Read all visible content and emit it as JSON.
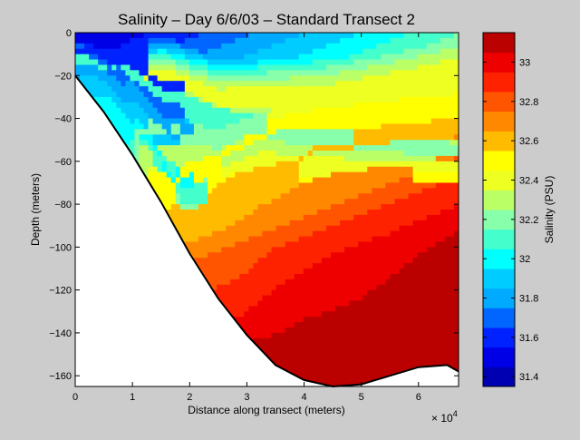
{
  "chart_data": {
    "type": "heatmap",
    "title": "Salinity – Day 6/6/03 – Standard Transect 2",
    "xlabel": "Distance along transect (meters)",
    "ylabel": "Depth (meters)",
    "x_exponent_label": "× 10",
    "x_exponent_power": "4",
    "xlim": [
      0,
      6.7
    ],
    "ylim": [
      -165,
      0
    ],
    "x_ticks": [
      0,
      1,
      2,
      3,
      4,
      5,
      6
    ],
    "x_tick_labels": [
      "0",
      "1",
      "2",
      "3",
      "4",
      "5",
      "6"
    ],
    "y_ticks": [
      0,
      -20,
      -40,
      -60,
      -80,
      -100,
      -120,
      -140,
      -160
    ],
    "y_tick_labels": [
      "0",
      "−20",
      "−40",
      "−60",
      "−80",
      "−100",
      "−120",
      "−140",
      "−160"
    ],
    "colorbar": {
      "label": "Salinity (PSU)",
      "range": [
        31.35,
        33.15
      ],
      "ticks": [
        31.4,
        31.6,
        31.8,
        32.0,
        32.2,
        32.4,
        32.6,
        32.8,
        33.0
      ],
      "tick_labels": [
        "31.4",
        "31.6",
        "31.8",
        "32",
        "32.2",
        "32.4",
        "32.6",
        "32.8",
        "33"
      ],
      "levels": [
        {
          "from": 31.35,
          "to": 31.45,
          "color": "#0000b3"
        },
        {
          "from": 31.45,
          "to": 31.55,
          "color": "#0000e6"
        },
        {
          "from": 31.55,
          "to": 31.65,
          "color": "#0022ff"
        },
        {
          "from": 31.65,
          "to": 31.75,
          "color": "#0066ff"
        },
        {
          "from": 31.75,
          "to": 31.85,
          "color": "#00aaff"
        },
        {
          "from": 31.85,
          "to": 31.95,
          "color": "#00ccff"
        },
        {
          "from": 31.95,
          "to": 32.05,
          "color": "#00ffff"
        },
        {
          "from": 32.05,
          "to": 32.15,
          "color": "#44ffcc"
        },
        {
          "from": 32.15,
          "to": 32.25,
          "color": "#88ffaa"
        },
        {
          "from": 32.25,
          "to": 32.35,
          "color": "#bbff66"
        },
        {
          "from": 32.35,
          "to": 32.45,
          "color": "#eeff22"
        },
        {
          "from": 32.45,
          "to": 32.55,
          "color": "#ffff00"
        },
        {
          "from": 32.55,
          "to": 32.65,
          "color": "#ffbb00"
        },
        {
          "from": 32.65,
          "to": 32.75,
          "color": "#ff8800"
        },
        {
          "from": 32.75,
          "to": 32.85,
          "color": "#ff5500"
        },
        {
          "from": 32.85,
          "to": 32.95,
          "color": "#ff2200"
        },
        {
          "from": 32.95,
          "to": 33.05,
          "color": "#ee0000"
        },
        {
          "from": 33.05,
          "to": 33.15,
          "color": "#bb0000"
        }
      ]
    },
    "salinity_contours": [
      {
        "x": [
          0.55,
          0.55
        ],
        "y": [
          0,
          -10
        ],
        "values_note_salinity": 31.45
      },
      {
        "x": [
          0.0,
          0.55,
          0.9,
          1.5
        ],
        "y": [
          -3,
          -3,
          -12,
          -24
        ],
        "salinity": 31.55
      },
      {
        "x": [
          0.0,
          0.45,
          1.0,
          1.5
        ],
        "y": [
          -8,
          -10,
          -22,
          -35
        ],
        "salinity": 31.65
      },
      {
        "x": [
          0.15,
          0.7,
          1.2,
          1.7
        ],
        "y": [
          -8,
          -18,
          -30,
          -48
        ],
        "salinity": 31.75
      },
      {
        "x": [
          0.35,
          0.9,
          1.4
        ],
        "y": [
          -16,
          -30,
          -50
        ],
        "salinity": 31.85
      },
      {
        "x": [
          0.5,
          1.1,
          1.5,
          1.7
        ],
        "y": [
          -25,
          -42,
          -58,
          -68
        ],
        "salinity": 31.95
      },
      {
        "x": [
          0.65,
          1.3,
          1.7,
          1.9
        ],
        "y": [
          -34,
          -52,
          -65,
          -76
        ],
        "salinity": 32.05
      },
      {
        "x": [
          0.0,
          0.7,
          1.6,
          2.9,
          4.7,
          6.7
        ],
        "y": [
          -12,
          -16,
          -30,
          -45,
          -52,
          -55
        ],
        "salinity": 32.15
      },
      {
        "x": [
          1.4,
          2.2,
          3.5,
          5.0,
          6.7
        ],
        "y": [
          -46,
          -50,
          -54,
          -58,
          -60
        ],
        "salinity": 32.25
      },
      {
        "x": [
          1.5,
          2.5,
          4.5,
          6.7
        ],
        "y": [
          -55,
          -57,
          -60,
          -62
        ],
        "salinity": 32.35
      },
      {
        "x": [
          1.6,
          2.5,
          4.5,
          6.7
        ],
        "y": [
          -20,
          -30,
          -30,
          -22
        ],
        "salinity": 32.45
      },
      {
        "x": [
          1.7,
          2.3,
          3.5,
          5.0,
          6.7
        ],
        "y": [
          -70,
          -60,
          -45,
          -38,
          -35
        ],
        "salinity": 32.55
      },
      {
        "x": [
          2.0,
          2.7,
          4.2,
          5.8,
          6.7
        ],
        "y": [
          -90,
          -75,
          -55,
          -48,
          -45
        ],
        "salinity": 32.65
      },
      {
        "x": [
          2.5,
          3.2,
          4.5,
          5.7,
          6.7
        ],
        "y": [
          -112,
          -95,
          -72,
          -62,
          -58
        ],
        "salinity": 32.75
      },
      {
        "x": [
          2.9,
          3.5,
          4.5,
          5.4,
          6.7
        ],
        "y": [
          -125,
          -110,
          -90,
          -82,
          -78
        ],
        "salinity": 32.85
      },
      {
        "x": [
          3.2,
          4.0,
          5.0,
          6.0,
          6.7
        ],
        "y": [
          -138,
          -125,
          -115,
          -95,
          -82
        ],
        "salinity": 32.95
      },
      {
        "x": [
          3.5,
          4.2,
          5.2,
          6.2,
          6.7
        ],
        "y": [
          -148,
          -142,
          -135,
          -120,
          -105
        ],
        "salinity": 33.05
      },
      {
        "x": [
          4.2,
          5.0,
          6.0,
          6.7
        ],
        "y": [
          -162,
          -155,
          -148,
          -138
        ],
        "salinity": 33.15
      }
    ],
    "seafloor": {
      "x": [
        0,
        0.5,
        1.0,
        1.5,
        2.0,
        2.5,
        3.0,
        3.5,
        4.0,
        4.5,
        5.0,
        5.5,
        6.0,
        6.5,
        6.7
      ],
      "y": [
        -20,
        -37,
        -57,
        -79,
        -103,
        -124,
        -141,
        -155,
        -162,
        -165,
        -164,
        -160,
        -156,
        -155,
        -158
      ]
    }
  }
}
